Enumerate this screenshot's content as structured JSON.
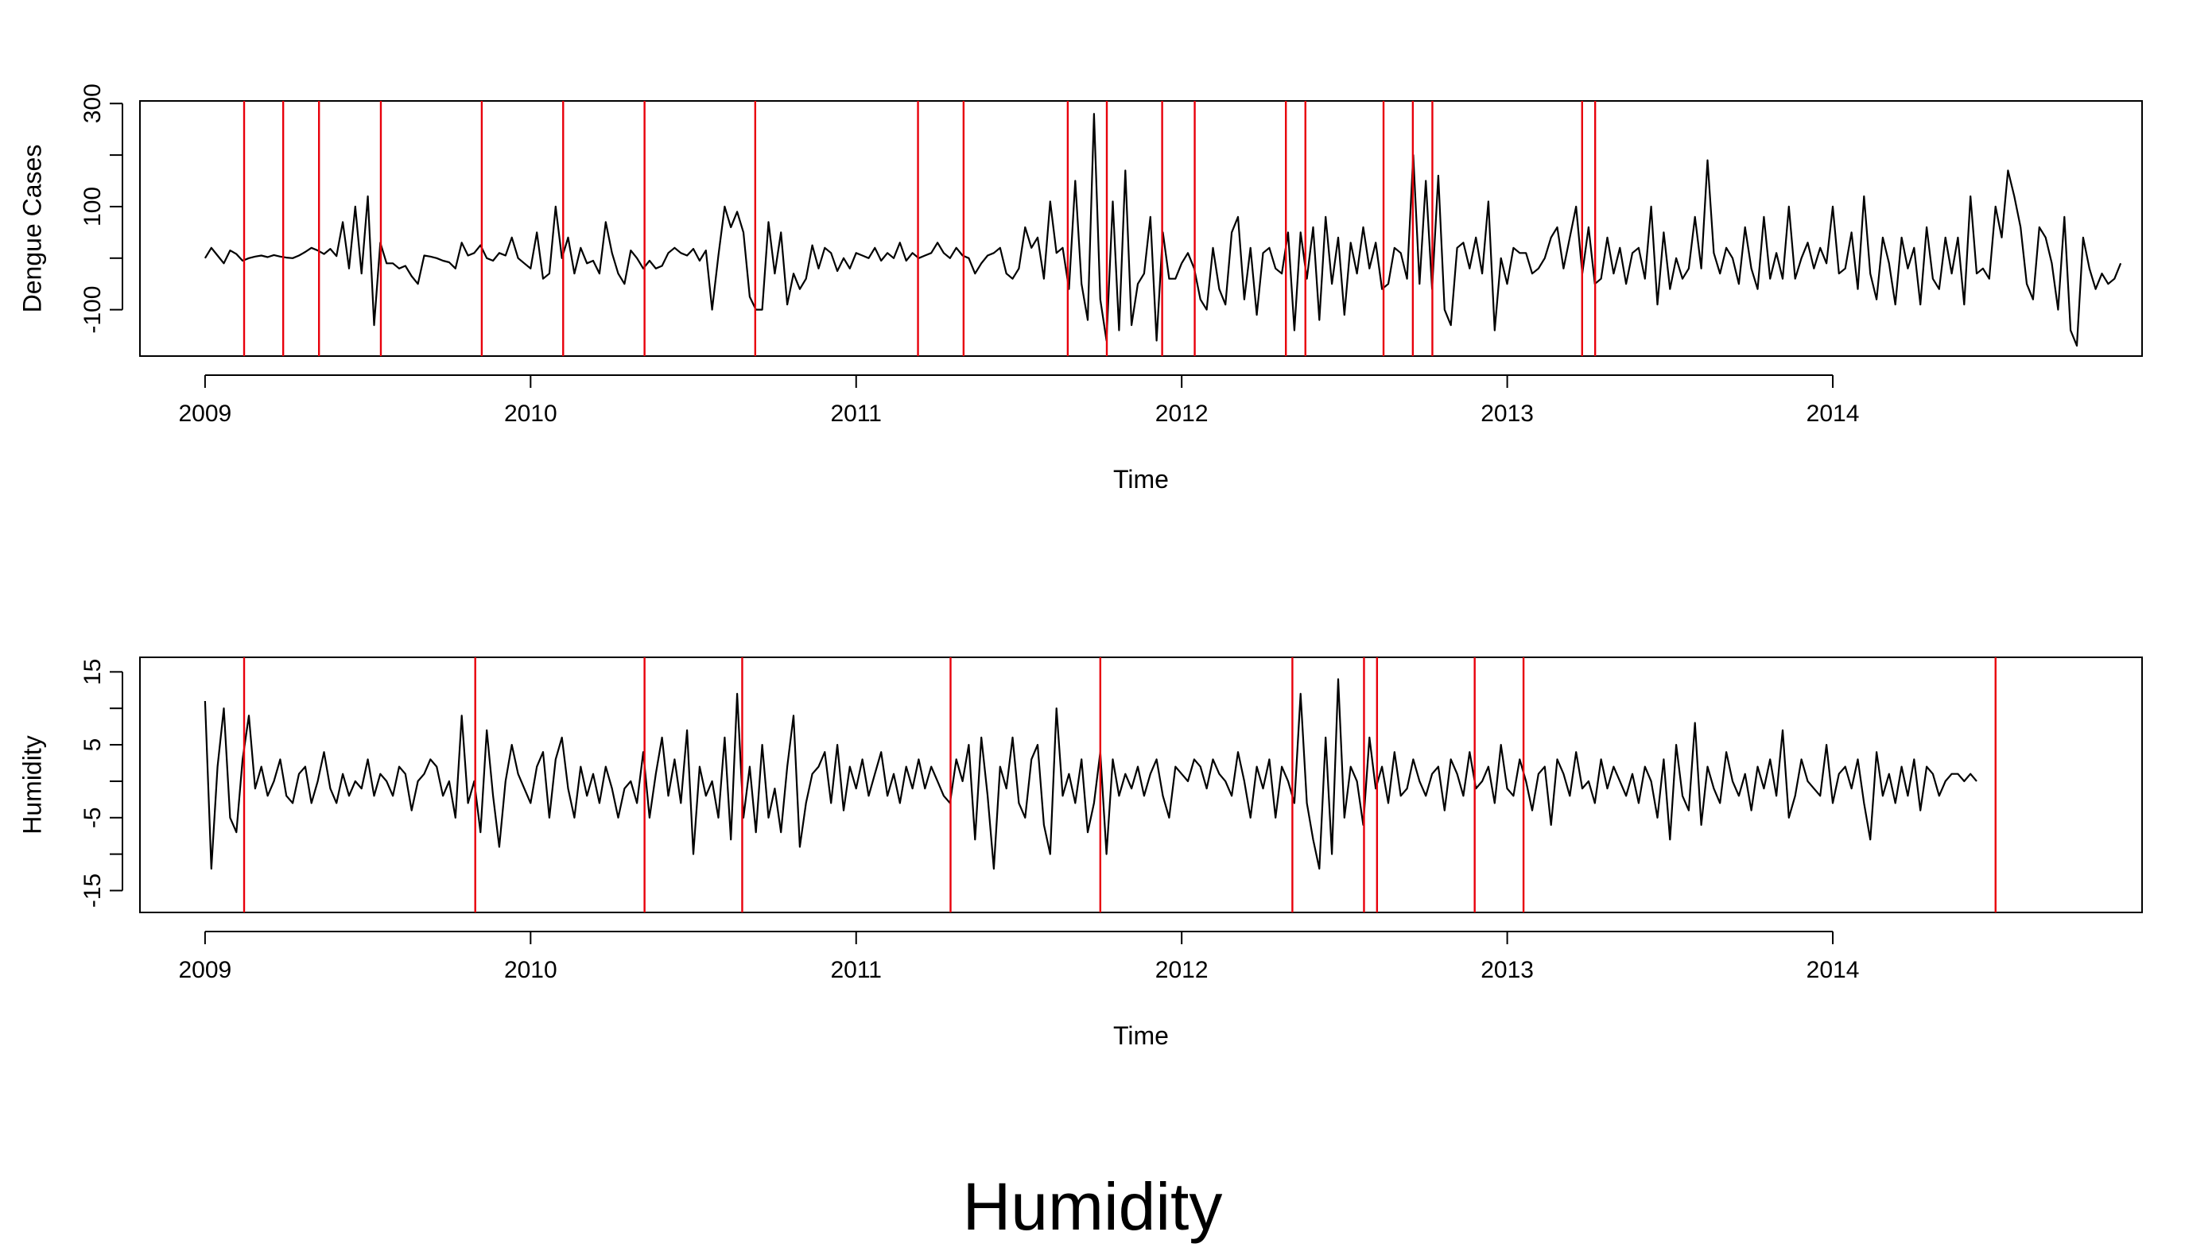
{
  "caption": "Humidity",
  "colors": {
    "series": "#000000",
    "changepoint": "#e8000b",
    "frame": "#000000"
  },
  "chart_data": [
    {
      "type": "line",
      "xlabel": "Time",
      "ylabel": "Dengue Cases",
      "xlim": [
        2008.8,
        2014.95
      ],
      "ylim": [
        -190,
        305
      ],
      "xticks": [
        "2009",
        "2010",
        "2011",
        "2012",
        "2013",
        "2014"
      ],
      "yticks": [
        "300",
        "100",
        "-100"
      ],
      "ytick_values": [
        300,
        100,
        -100
      ],
      "ytick_minor": [
        200,
        0
      ],
      "series_x_start": 2009.0,
      "series_x_step": 0.01923,
      "values": [
        0,
        20,
        5,
        -10,
        15,
        8,
        -5,
        0,
        3,
        5,
        2,
        6,
        3,
        1,
        0,
        5,
        12,
        20,
        15,
        8,
        18,
        4,
        70,
        -20,
        100,
        -30,
        120,
        -130,
        30,
        -10,
        -10,
        -20,
        -15,
        -35,
        -50,
        5,
        3,
        0,
        -5,
        -8,
        -20,
        30,
        5,
        10,
        25,
        0,
        -5,
        10,
        5,
        40,
        0,
        -10,
        -20,
        50,
        -40,
        -30,
        100,
        0,
        40,
        -30,
        20,
        -10,
        -5,
        -30,
        70,
        10,
        -30,
        -50,
        15,
        0,
        -20,
        -5,
        -20,
        -15,
        10,
        20,
        10,
        5,
        18,
        -5,
        15,
        -100,
        5,
        100,
        60,
        90,
        50,
        -75,
        -100,
        -100,
        70,
        -30,
        50,
        -90,
        -30,
        -60,
        -40,
        25,
        -20,
        20,
        10,
        -25,
        0,
        -20,
        10,
        5,
        0,
        20,
        -5,
        10,
        0,
        30,
        -5,
        10,
        0,
        5,
        10,
        30,
        10,
        0,
        20,
        5,
        0,
        -30,
        -10,
        5,
        10,
        20,
        -30,
        -40,
        -20,
        60,
        20,
        40,
        -40,
        110,
        10,
        20,
        -60,
        150,
        -50,
        -120,
        280,
        -80,
        -160,
        110,
        -140,
        170,
        -130,
        -50,
        -30,
        80,
        -160,
        50,
        -40,
        -40,
        -10,
        10,
        -20,
        -80,
        -100,
        20,
        -60,
        -90,
        50,
        80,
        -80,
        20,
        -110,
        10,
        20,
        -20,
        -30,
        50,
        -140,
        50,
        -40,
        60,
        -120,
        80,
        -50,
        40,
        -110,
        30,
        -30,
        60,
        -20,
        30,
        -60,
        -50,
        20,
        10,
        -40,
        200,
        -50,
        150,
        -60,
        160,
        -100,
        -130,
        20,
        30,
        -20,
        40,
        -30,
        110,
        -140,
        0,
        -50,
        20,
        10,
        10,
        -30,
        -20,
        0,
        40,
        60,
        -20,
        40,
        100,
        -30,
        60,
        -50,
        -40,
        40,
        -30,
        20,
        -50,
        10,
        20,
        -40,
        100,
        -90,
        50,
        -60,
        0,
        -40,
        -20,
        80,
        -20,
        190,
        10,
        -30,
        20,
        0,
        -50,
        60,
        -20,
        -60,
        80,
        -40,
        10,
        -40,
        100,
        -40,
        0,
        30,
        -20,
        20,
        -10,
        100,
        -30,
        -20,
        50,
        -60,
        120,
        -30,
        -80,
        40,
        -10,
        -90,
        40,
        -20,
        20,
        -90,
        60,
        -40,
        -60,
        40,
        -30,
        40,
        -90,
        120,
        -30,
        -20,
        -40,
        100,
        40,
        170,
        120,
        60,
        -50,
        -80,
        60,
        40,
        -10,
        -100,
        80,
        -140,
        -170,
        40,
        -20,
        -60,
        -30,
        -50,
        -40,
        -10
      ]
    },
    {
      "type": "line",
      "xlabel": "Time",
      "ylabel": "Humidity",
      "xlim": [
        2008.8,
        2014.95
      ],
      "ylim": [
        -18,
        17
      ],
      "xticks": [
        "2009",
        "2010",
        "2011",
        "2012",
        "2013",
        "2014"
      ],
      "yticks": [
        "15",
        "5",
        "-5",
        "-15"
      ],
      "ytick_values": [
        15,
        5,
        -5,
        -15
      ],
      "ytick_minor": [
        10,
        0,
        -10
      ],
      "series_x_start": 2009.0,
      "series_x_step": 0.01923,
      "values": [
        11,
        -12,
        2,
        10,
        -5,
        -7,
        3,
        9,
        -1,
        2,
        -2,
        0,
        3,
        -2,
        -3,
        1,
        2,
        -3,
        0,
        4,
        -1,
        -3,
        1,
        -2,
        0,
        -1,
        3,
        -2,
        1,
        0,
        -2,
        2,
        1,
        -4,
        0,
        1,
        3,
        2,
        -2,
        0,
        -5,
        9,
        -3,
        0,
        -7,
        7,
        -2,
        -9,
        0,
        5,
        1,
        -1,
        -3,
        2,
        4,
        -5,
        3,
        6,
        -1,
        -5,
        2,
        -2,
        1,
        -3,
        2,
        -1,
        -5,
        -1,
        0,
        -3,
        4,
        -5,
        1,
        6,
        -2,
        3,
        -3,
        7,
        -10,
        2,
        -2,
        0,
        -5,
        6,
        -8,
        12,
        -5,
        2,
        -7,
        5,
        -5,
        -1,
        -7,
        2,
        9,
        -9,
        -3,
        1,
        2,
        4,
        -3,
        5,
        -4,
        2,
        -1,
        3,
        -2,
        1,
        4,
        -2,
        1,
        -3,
        2,
        -1,
        3,
        -1,
        2,
        0,
        -2,
        -3,
        3,
        0,
        5,
        -8,
        6,
        -2,
        -12,
        2,
        -1,
        6,
        -3,
        -5,
        3,
        5,
        -6,
        -10,
        10,
        -2,
        1,
        -3,
        3,
        -7,
        -3,
        4,
        -10,
        3,
        -2,
        1,
        -1,
        2,
        -2,
        1,
        3,
        -2,
        -5,
        2,
        1,
        0,
        3,
        2,
        -1,
        3,
        1,
        0,
        -2,
        4,
        0,
        -5,
        2,
        -1,
        3,
        -5,
        2,
        0,
        -3,
        12,
        -3,
        -8,
        -12,
        6,
        -10,
        14,
        -5,
        2,
        0,
        -6,
        6,
        -1,
        2,
        -3,
        4,
        -2,
        -1,
        3,
        0,
        -2,
        1,
        2,
        -4,
        3,
        1,
        -2,
        4,
        -1,
        0,
        2,
        -3,
        5,
        -1,
        -2,
        3,
        0,
        -4,
        1,
        2,
        -6,
        3,
        1,
        -2,
        4,
        -1,
        0,
        -3,
        3,
        -1,
        2,
        0,
        -2,
        1,
        -3,
        2,
        0,
        -5,
        3,
        -8,
        5,
        -2,
        -4,
        8,
        -6,
        2,
        -1,
        -3,
        4,
        0,
        -2,
        1,
        -4,
        2,
        -1,
        3,
        -2,
        7,
        -5,
        -2,
        3,
        0,
        -1,
        -2,
        5,
        -3,
        1,
        2,
        -1,
        3,
        -3,
        -8,
        4,
        -2,
        1,
        -3,
        2,
        -2,
        3,
        -4,
        2,
        1,
        -2,
        0,
        1,
        1,
        0,
        1,
        0
      ]
    }
  ]
}
